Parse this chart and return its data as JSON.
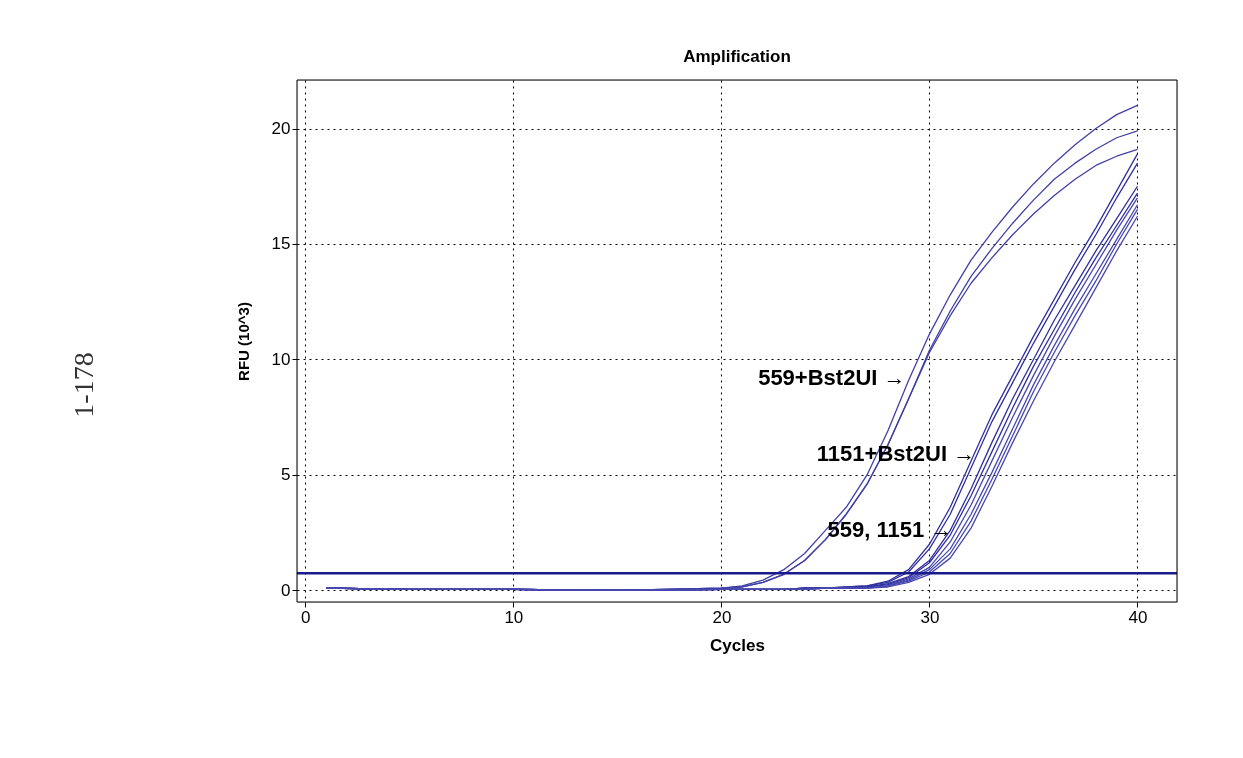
{
  "chart_data": {
    "type": "line",
    "title": "Amplification",
    "xlabel": "Cycles",
    "ylabel": "RFU (10^3)",
    "xlim": [
      -0.4,
      41.9
    ],
    "ylim": [
      -0.5,
      22.1
    ],
    "xticks": [
      0,
      10,
      20,
      30,
      40
    ],
    "yticks": [
      0,
      5,
      10,
      15,
      20
    ],
    "grid": true,
    "legend": false,
    "marker": "none",
    "line_style": "solid",
    "x": [
      1,
      5,
      10,
      15,
      20,
      21,
      22,
      23,
      24,
      25,
      26,
      27,
      28,
      29,
      30,
      31,
      32,
      33,
      34,
      35,
      36,
      37,
      38,
      39,
      40
    ],
    "series": [
      {
        "color": "#4040a8",
        "values": [
          0.1,
          0.05,
          0.05,
          0.0,
          0.1,
          0.2,
          0.45,
          0.9,
          1.6,
          2.6,
          3.6,
          5.0,
          6.9,
          9.1,
          11.1,
          12.8,
          14.3,
          15.5,
          16.6,
          17.6,
          18.5,
          19.3,
          20.0,
          20.6,
          21.0
        ]
      },
      {
        "color": "#4040a8",
        "values": [
          0.1,
          0.05,
          0.05,
          0.0,
          0.1,
          0.15,
          0.35,
          0.7,
          1.3,
          2.2,
          3.3,
          4.6,
          6.3,
          8.3,
          10.4,
          12.1,
          13.6,
          14.8,
          15.9,
          16.9,
          17.8,
          18.5,
          19.1,
          19.6,
          19.9
        ]
      },
      {
        "color": "#4040a8",
        "values": [
          0.1,
          0.05,
          0.05,
          0.0,
          0.1,
          0.15,
          0.35,
          0.7,
          1.3,
          2.2,
          3.3,
          4.6,
          6.3,
          8.3,
          10.3,
          11.9,
          13.3,
          14.4,
          15.4,
          16.3,
          17.1,
          17.8,
          18.4,
          18.8,
          19.1
        ]
      },
      {
        "color": "#3030a0",
        "values": [
          0.1,
          0.05,
          0.05,
          0.0,
          0.05,
          0.05,
          0.05,
          0.05,
          0.1,
          0.1,
          0.15,
          0.2,
          0.4,
          0.9,
          2.0,
          3.6,
          5.6,
          7.6,
          9.3,
          11.0,
          12.6,
          14.2,
          15.7,
          17.3,
          18.9
        ]
      },
      {
        "color": "#3030a0",
        "values": [
          0.1,
          0.05,
          0.05,
          0.0,
          0.05,
          0.05,
          0.05,
          0.05,
          0.1,
          0.1,
          0.15,
          0.2,
          0.35,
          0.8,
          1.8,
          3.3,
          5.3,
          7.3,
          9.0,
          10.7,
          12.3,
          13.9,
          15.4,
          17.0,
          18.5
        ]
      },
      {
        "color": "#3030a0",
        "values": [
          0.1,
          0.05,
          0.05,
          0.0,
          0.05,
          0.05,
          0.05,
          0.05,
          0.1,
          0.1,
          0.1,
          0.15,
          0.3,
          0.6,
          1.3,
          2.6,
          4.4,
          6.4,
          8.3,
          10.0,
          11.7,
          13.2,
          14.7,
          16.1,
          17.5
        ]
      },
      {
        "color": "#3030a0",
        "values": [
          0.1,
          0.05,
          0.05,
          0.0,
          0.05,
          0.05,
          0.05,
          0.05,
          0.1,
          0.1,
          0.1,
          0.15,
          0.25,
          0.55,
          1.2,
          2.4,
          4.1,
          6.0,
          7.9,
          9.7,
          11.3,
          12.9,
          14.4,
          15.8,
          17.2
        ]
      },
      {
        "color": "#4848b0",
        "values": [
          0.1,
          0.05,
          0.05,
          0.0,
          0.05,
          0.05,
          0.05,
          0.05,
          0.05,
          0.1,
          0.1,
          0.1,
          0.2,
          0.5,
          1.0,
          2.1,
          3.7,
          5.6,
          7.5,
          9.3,
          11.0,
          12.6,
          14.1,
          15.6,
          17.0
        ]
      },
      {
        "color": "#4848b0",
        "values": [
          0.1,
          0.05,
          0.05,
          0.0,
          0.05,
          0.05,
          0.05,
          0.05,
          0.05,
          0.1,
          0.1,
          0.1,
          0.2,
          0.45,
          0.9,
          1.8,
          3.3,
          5.1,
          7.0,
          8.9,
          10.6,
          12.2,
          13.7,
          15.2,
          16.7
        ]
      },
      {
        "color": "#4848b0",
        "values": [
          0.1,
          0.05,
          0.05,
          0.0,
          0.05,
          0.05,
          0.05,
          0.05,
          0.05,
          0.1,
          0.1,
          0.1,
          0.2,
          0.4,
          0.8,
          1.6,
          3.0,
          4.8,
          6.7,
          8.6,
          10.3,
          11.9,
          13.4,
          15.0,
          16.5
        ]
      },
      {
        "color": "#4848b0",
        "values": [
          0.1,
          0.05,
          0.05,
          0.0,
          0.05,
          0.05,
          0.05,
          0.05,
          0.05,
          0.1,
          0.1,
          0.1,
          0.15,
          0.35,
          0.7,
          1.4,
          2.7,
          4.5,
          6.4,
          8.2,
          9.9,
          11.5,
          13.1,
          14.7,
          16.2
        ]
      }
    ],
    "ref_lines": [
      {
        "axis": "y",
        "value": 0.75,
        "color": "#1a1a8c"
      }
    ],
    "annotations": [
      {
        "text": "559+Bst2UI →",
        "x": 28.85,
        "y": 9.2
      },
      {
        "text": "1151+Bst2UI →",
        "x": 32.2,
        "y": 5.9
      },
      {
        "text": "559, 1151 →",
        "x": 31.1,
        "y": 2.6
      },
      "1-178"
    ]
  }
}
